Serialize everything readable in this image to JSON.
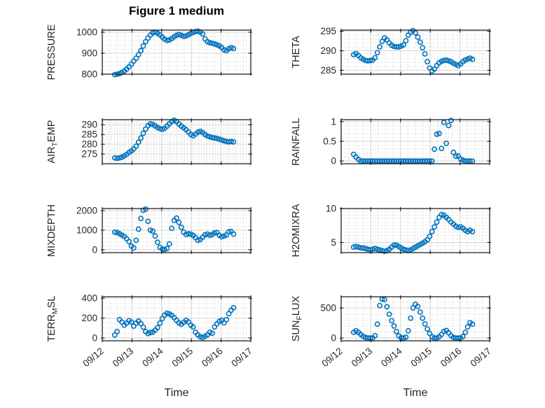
{
  "figure": {
    "title": "Figure 1 medium",
    "xlabel": "Time",
    "marker_color": "#0072BD",
    "axis_color": "#222222",
    "tick_text_color": "#262626",
    "major_grid_color": "#d3d3d3",
    "minor_grid_color": "#c9c9c9",
    "background": "#ffffff",
    "x_tick_labels": [
      "09/12",
      "09/13",
      "09/14",
      "09/15",
      "09/16",
      "09/17"
    ],
    "time_days": [
      0.42,
      0.5,
      0.58,
      0.66,
      0.74,
      0.82,
      0.9,
      0.98,
      1.06,
      1.14,
      1.22,
      1.3,
      1.38,
      1.46,
      1.54,
      1.62,
      1.7,
      1.78,
      1.86,
      1.94,
      2.02,
      2.1,
      2.18,
      2.26,
      2.34,
      2.42,
      2.5,
      2.58,
      2.66,
      2.74,
      2.82,
      2.9,
      2.98,
      3.06,
      3.14,
      3.22,
      3.3,
      3.38,
      3.46,
      3.54,
      3.62,
      3.7,
      3.78,
      3.86,
      3.94,
      4.02,
      4.1,
      4.18,
      4.26,
      4.34,
      4.42
    ]
  },
  "chart_data": [
    {
      "type": "scatter",
      "name": "PRESSURE",
      "row": 0,
      "col": 0,
      "label_parts": {
        "pre": "PRESSURE",
        "sub": "",
        "post": ""
      },
      "ylim": [
        800,
        1010
      ],
      "yticks": [
        800,
        900,
        1000
      ],
      "ytick_labels": [
        "800",
        "900",
        "1000"
      ],
      "yminor": 20,
      "xlim": [
        0,
        5
      ],
      "xticks": [
        0,
        1,
        2,
        3,
        4,
        5
      ],
      "values": [
        798,
        800,
        803,
        808,
        815,
        824,
        835,
        848,
        862,
        876,
        893,
        912,
        934,
        955,
        972,
        986,
        997,
        1000,
        995,
        987,
        977,
        967,
        961,
        963,
        970,
        978,
        985,
        989,
        985,
        980,
        982,
        988,
        994,
        999,
        1003,
        1005,
        1000,
        992,
        968,
        955,
        950,
        947,
        944,
        940,
        935,
        927,
        916,
        912,
        921,
        926,
        922
      ]
    },
    {
      "type": "scatter",
      "name": "THETA",
      "row": 0,
      "col": 1,
      "label_parts": {
        "pre": "THETA",
        "sub": "",
        "post": ""
      },
      "ylim": [
        284,
        295.3
      ],
      "yticks": [
        285,
        290,
        295
      ],
      "ytick_labels": [
        "285",
        "290",
        "295"
      ],
      "yminor": 1,
      "xlim": [
        0,
        5
      ],
      "xticks": [
        0,
        1,
        2,
        3,
        4,
        5
      ],
      "values": [
        289,
        289.3,
        288.8,
        288.2,
        287.8,
        287.5,
        287.4,
        287.5,
        287.6,
        288.2,
        289.5,
        291,
        292.4,
        293.3,
        292.8,
        292,
        291.4,
        291.1,
        291,
        291,
        291.2,
        291.5,
        292.6,
        294,
        294.8,
        295.2,
        294.6,
        293.5,
        292.2,
        290.8,
        289.2,
        287.2,
        285.6,
        284.8,
        285.3,
        286.2,
        286.9,
        287.3,
        287.5,
        287.6,
        287.4,
        287.2,
        286.8,
        286.5,
        286.2,
        286.6,
        287.2,
        287.6,
        287.9,
        288.1,
        287.8
      ]
    },
    {
      "type": "scatter",
      "name": "AIR_TEMP",
      "row": 1,
      "col": 0,
      "label_parts": {
        "pre": "AIR",
        "sub": "T",
        "post": "EMP"
      },
      "ylim": [
        270,
        292.6
      ],
      "yticks": [
        275,
        280,
        285,
        290
      ],
      "ytick_labels": [
        "275",
        "280",
        "285",
        "290"
      ],
      "yminor": 1,
      "xlim": [
        0,
        5
      ],
      "xticks": [
        0,
        1,
        2,
        3,
        4,
        5
      ],
      "values": [
        273,
        272.8,
        273,
        273.4,
        274,
        274.8,
        275.8,
        276.6,
        277.6,
        279,
        281,
        283.2,
        285.6,
        287.8,
        289.5,
        290.5,
        290.2,
        289.4,
        288.6,
        288,
        287.6,
        288.2,
        289.3,
        290.5,
        291.6,
        292.3,
        291.6,
        290.4,
        289.3,
        288.4,
        287.5,
        286.3,
        285,
        284.3,
        285.2,
        286.2,
        286.6,
        286,
        285,
        284.2,
        283.8,
        283.4,
        283.2,
        283,
        282.6,
        282.2,
        281.8,
        281.4,
        281.2,
        281.4,
        281.2
      ]
    },
    {
      "type": "scatter",
      "name": "RAINFALL",
      "row": 1,
      "col": 1,
      "label_parts": {
        "pre": "RAINFALL",
        "sub": "",
        "post": ""
      },
      "ylim": [
        -0.07,
        1.05
      ],
      "yticks": [
        0,
        0.5,
        1
      ],
      "ytick_labels": [
        "0",
        "0.5",
        "1"
      ],
      "yminor": 0.1,
      "xlim": [
        0,
        5
      ],
      "xticks": [
        0,
        1,
        2,
        3,
        4,
        5
      ],
      "values": [
        0.17,
        0.1,
        0.04,
        0,
        0,
        0,
        0,
        0,
        0,
        0,
        0,
        0,
        0,
        0,
        0,
        0,
        0,
        0,
        0,
        0,
        0,
        0,
        0,
        0,
        0,
        0,
        0,
        0,
        0,
        0,
        0,
        0,
        0,
        0,
        0.3,
        0.68,
        0.7,
        0.32,
        0.98,
        0.45,
        0.9,
        1.03,
        0.22,
        0.12,
        0.13,
        0.05,
        0.02,
        0,
        0,
        0,
        0
      ]
    },
    {
      "type": "scatter",
      "name": "MIXDEPTH",
      "row": 2,
      "col": 0,
      "label_parts": {
        "pre": "MIXDEPTH",
        "sub": "",
        "post": ""
      },
      "ylim": [
        -150,
        2110
      ],
      "yticks": [
        0,
        1000,
        2000
      ],
      "ytick_labels": [
        "0",
        "1000",
        "2000"
      ],
      "yminor": 200,
      "xlim": [
        0,
        5
      ],
      "xticks": [
        0,
        1,
        2,
        3,
        4,
        5
      ],
      "values": [
        900,
        880,
        820,
        750,
        680,
        560,
        420,
        180,
        90,
        480,
        1050,
        1600,
        2020,
        2080,
        1450,
        1000,
        950,
        700,
        380,
        120,
        30,
        10,
        60,
        300,
        1100,
        1500,
        1620,
        1400,
        1150,
        900,
        780,
        820,
        800,
        730,
        620,
        480,
        520,
        640,
        760,
        800,
        740,
        780,
        860,
        880,
        740,
        660,
        700,
        760,
        920,
        940,
        800
      ]
    },
    {
      "type": "scatter",
      "name": "H2OMIXRA",
      "row": 2,
      "col": 1,
      "label_parts": {
        "pre": "H2OMIXRA",
        "sub": "",
        "post": ""
      },
      "ylim": [
        3.5,
        10
      ],
      "yticks": [
        5,
        10
      ],
      "ytick_labels": [
        "5",
        "10"
      ],
      "yminor": 0.5,
      "xlim": [
        0,
        5
      ],
      "xticks": [
        0,
        1,
        2,
        3,
        4,
        5
      ],
      "values": [
        4.3,
        4.4,
        4.3,
        4.2,
        4.2,
        4.1,
        4,
        3.9,
        4,
        4.1,
        4,
        3.9,
        3.8,
        3.7,
        3.8,
        4,
        4.3,
        4.6,
        4.6,
        4.4,
        4.2,
        4,
        3.9,
        3.8,
        3.9,
        4.1,
        4.3,
        4.5,
        4.7,
        4.9,
        5.1,
        5.4,
        5.9,
        6.6,
        7.3,
        8,
        8.7,
        9.1,
        9,
        8.7,
        8.4,
        8,
        7.7,
        7.4,
        7.2,
        7.3,
        7.1,
        6.8,
        6.6,
        6.8,
        6.6
      ]
    },
    {
      "type": "scatter",
      "name": "TERR_MSL",
      "row": 3,
      "col": 0,
      "label_parts": {
        "pre": "TERR",
        "sub": "M",
        "post": "SL"
      },
      "ylim": [
        -28,
        415
      ],
      "yticks": [
        0,
        200,
        400
      ],
      "ytick_labels": [
        "0",
        "200",
        "400"
      ],
      "yminor": 50,
      "xlim": [
        0,
        5
      ],
      "xticks": [
        0,
        1,
        2,
        3,
        4,
        5
      ],
      "values": [
        30,
        65,
        185,
        160,
        130,
        150,
        175,
        160,
        120,
        150,
        170,
        145,
        110,
        65,
        45,
        55,
        60,
        80,
        105,
        150,
        195,
        230,
        250,
        242,
        228,
        205,
        178,
        152,
        138,
        158,
        178,
        162,
        128,
        112,
        58,
        32,
        12,
        4,
        18,
        32,
        58,
        48,
        112,
        142,
        168,
        178,
        152,
        185,
        245,
        280,
        305
      ]
    },
    {
      "type": "scatter",
      "name": "SUN_FLUX",
      "row": 3,
      "col": 1,
      "label_parts": {
        "pre": "SUN",
        "sub": "F",
        "post": "LUX"
      },
      "ylim": [
        -46,
        686
      ],
      "yticks": [
        0,
        500
      ],
      "ytick_labels": [
        "0",
        "500"
      ],
      "yminor": 100,
      "xlim": [
        0,
        5
      ],
      "xticks": [
        0,
        1,
        2,
        3,
        4,
        5
      ],
      "values": [
        95,
        120,
        95,
        60,
        30,
        10,
        0,
        0,
        0,
        40,
        230,
        540,
        645,
        640,
        520,
        395,
        290,
        200,
        110,
        35,
        5,
        0,
        15,
        120,
        330,
        500,
        560,
        525,
        430,
        330,
        235,
        150,
        75,
        20,
        0,
        0,
        20,
        60,
        110,
        125,
        85,
        40,
        10,
        0,
        0,
        0,
        25,
        95,
        185,
        255,
        230
      ]
    }
  ]
}
